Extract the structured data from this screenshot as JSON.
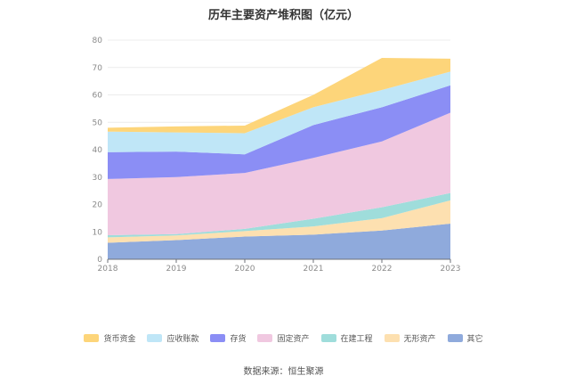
{
  "chart_data": {
    "type": "area",
    "stacked": true,
    "title": "历年主要资产堆积图（亿元）",
    "categories": [
      "2018",
      "2019",
      "2020",
      "2021",
      "2022",
      "2023"
    ],
    "ylim": [
      0,
      80
    ],
    "yticks": [
      0,
      10,
      20,
      30,
      40,
      50,
      60,
      70,
      80
    ],
    "grid": true,
    "legend_position": "bottom",
    "series": [
      {
        "name": "其它",
        "color": "#8faadc",
        "values": [
          6.0,
          7.0,
          8.3,
          9.0,
          10.5,
          13.0
        ]
      },
      {
        "name": "无形资产",
        "color": "#fde0b0",
        "values": [
          2.0,
          1.7,
          2.0,
          3.0,
          4.5,
          8.5
        ]
      },
      {
        "name": "在建工程",
        "color": "#9fdddb",
        "values": [
          0.8,
          0.5,
          0.8,
          2.8,
          4.0,
          2.7
        ]
      },
      {
        "name": "固定资产",
        "color": "#f0c8e0",
        "values": [
          20.5,
          20.8,
          20.4,
          22.2,
          24.0,
          29.3
        ]
      },
      {
        "name": "存货",
        "color": "#8b8ef5",
        "values": [
          9.8,
          9.3,
          6.8,
          12.0,
          12.5,
          10.0
        ]
      },
      {
        "name": "应收账款",
        "color": "#bfe6f7",
        "values": [
          7.5,
          7.0,
          7.7,
          6.5,
          6.3,
          5.0
        ]
      },
      {
        "name": "货币资金",
        "color": "#fdd57a",
        "values": [
          1.4,
          2.2,
          2.8,
          4.5,
          11.7,
          4.7
        ]
      }
    ]
  },
  "source_text": "数据来源：恒生聚源"
}
